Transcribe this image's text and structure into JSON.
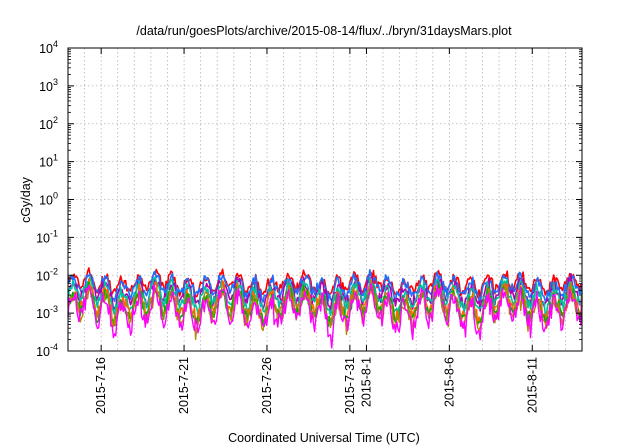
{
  "chart_data": {
    "type": "line",
    "title": "/data/run/goesPlots/archive/2015-08-14/flux/../bryn/31daysMars.plot",
    "xlabel": "Coordinated Universal Time (UTC)",
    "ylabel": "cGy/day",
    "y_scale": "log",
    "ylim": [
      0.0001,
      10000
    ],
    "y_ticks": [
      {
        "base": "10",
        "exp": "4"
      },
      {
        "base": "10",
        "exp": "3"
      },
      {
        "base": "10",
        "exp": "2"
      },
      {
        "base": "10",
        "exp": "1"
      },
      {
        "base": "10",
        "exp": "0"
      },
      {
        "base": "10",
        "exp": "-1"
      },
      {
        "base": "10",
        "exp": "-2"
      },
      {
        "base": "10",
        "exp": "-3"
      },
      {
        "base": "10",
        "exp": "-4"
      }
    ],
    "xlim": [
      "2015-07-14",
      "2015-08-14"
    ],
    "x_ticks": [
      "2015-7-16",
      "2015-7-21",
      "2015-7-26",
      "2015-7-31",
      "2015-8-1",
      "2015-8-6",
      "2015-8-11"
    ],
    "grid": true,
    "series": [
      {
        "color": "#ff0000",
        "level": 0.006,
        "amp": 0.13
      },
      {
        "color": "#1e6fff",
        "level": 0.0052,
        "amp": 0.13
      },
      {
        "color": "#b000b0",
        "level": 0.0035,
        "amp": 0.15
      },
      {
        "color": "#00c0a0",
        "level": 0.0028,
        "amp": 0.15
      },
      {
        "color": "#ff6600",
        "level": 0.0018,
        "amp": 0.17
      },
      {
        "color": "#00b000",
        "level": 0.0016,
        "amp": 0.17
      },
      {
        "color": "#b8860b",
        "level": 0.0014,
        "amp": 0.19
      },
      {
        "color": "#ff00ff",
        "level": 0.0012,
        "amp": 0.25
      }
    ]
  }
}
